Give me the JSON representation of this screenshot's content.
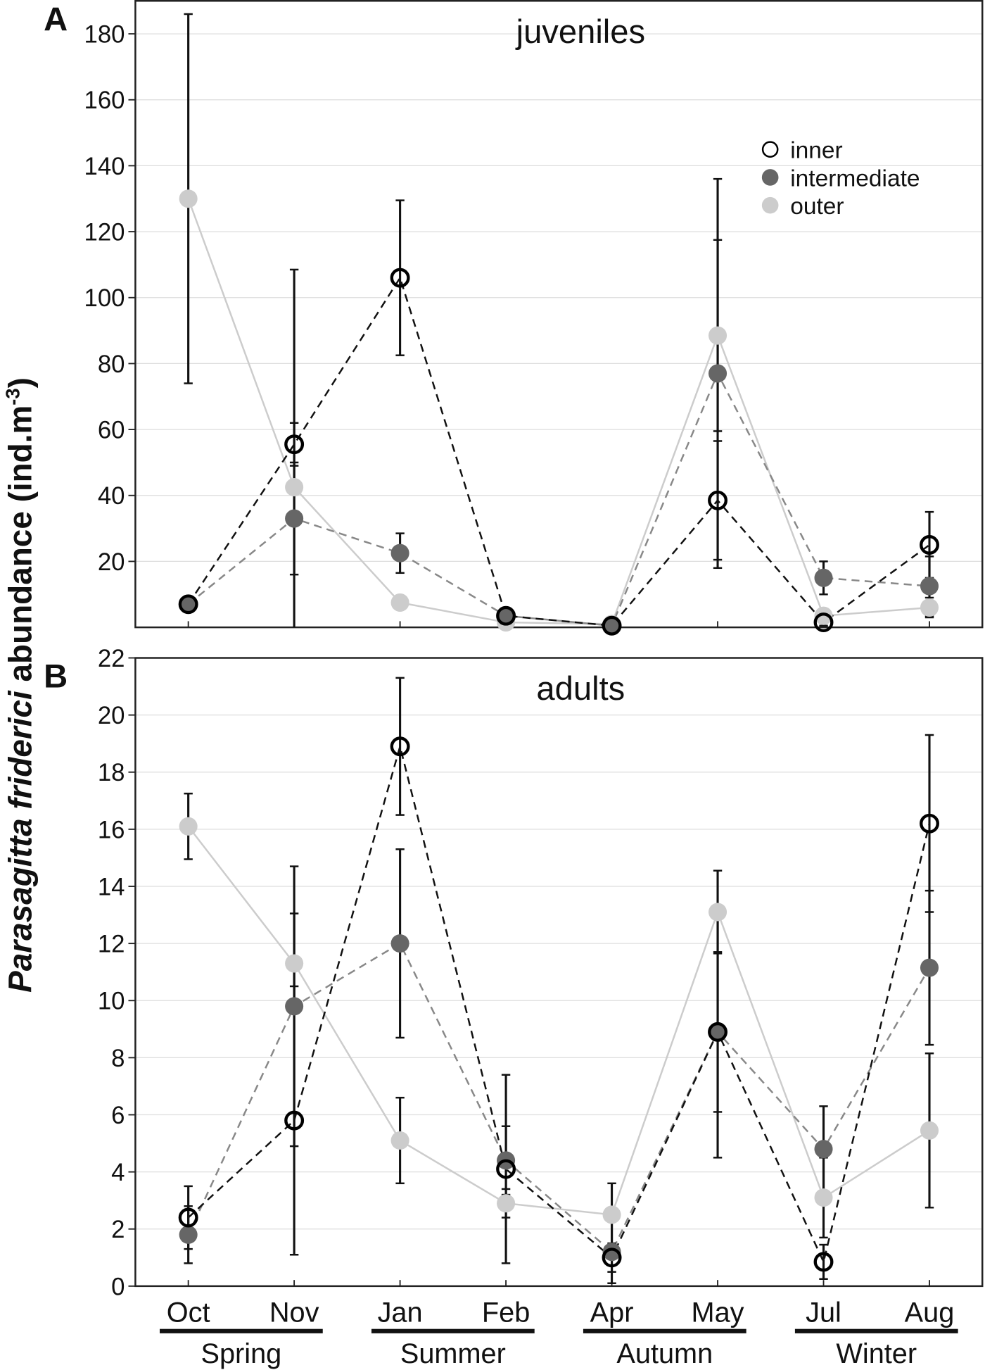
{
  "chart_data": [
    {
      "type": "line",
      "panel_label": "A",
      "title": "juveniles",
      "ylabel": {
        "species": "Parasagitta friderici",
        "text": " abundance (ind.m",
        "sup": "-3",
        "close": ")"
      },
      "categories": [
        "Oct",
        "Nov",
        "Jan",
        "Feb",
        "Apr",
        "May",
        "Jul",
        "Aug"
      ],
      "ylim": [
        0,
        190
      ],
      "yticks": [
        20,
        40,
        60,
        80,
        100,
        120,
        140,
        160,
        180
      ],
      "grid": true,
      "legend": "upper right",
      "series": [
        {
          "name": "inner",
          "color": "#000000",
          "marker": "open",
          "dashed": true,
          "values": [
            7,
            55.5,
            106,
            3.5,
            0.5,
            38.5,
            1.5,
            25
          ],
          "errors": [
            2,
            6.5,
            23.5,
            2,
            0.5,
            18,
            1,
            10
          ]
        },
        {
          "name": "intermediate",
          "color": "#666666",
          "marker": "filled",
          "dashed": true,
          "values": [
            7,
            33,
            22.5,
            3.5,
            0.5,
            77,
            15,
            12.5
          ],
          "errors": [
            1,
            17,
            6,
            1,
            0.5,
            59,
            5,
            9
          ]
        },
        {
          "name": "outer",
          "color": "#cccccc",
          "marker": "filled",
          "dashed": false,
          "values": [
            130,
            42.5,
            7.5,
            1.5,
            1,
            88.5,
            3.5,
            6
          ],
          "errors": [
            56,
            66,
            1,
            1,
            0.5,
            29,
            1,
            3
          ]
        }
      ]
    },
    {
      "type": "line",
      "panel_label": "B",
      "title": "adults",
      "categories": [
        "Oct",
        "Nov",
        "Jan",
        "Feb",
        "Apr",
        "May",
        "Jul",
        "Aug"
      ],
      "groups": [
        "Spring",
        "Summer",
        "Autumn",
        "Winter"
      ],
      "ylim": [
        0,
        22
      ],
      "yticks": [
        0,
        2,
        4,
        6,
        8,
        10,
        12,
        14,
        16,
        18,
        20,
        22
      ],
      "grid": true,
      "series": [
        {
          "name": "inner",
          "color": "#000000",
          "marker": "open",
          "dashed": true,
          "values": [
            2.4,
            5.8,
            18.9,
            4.1,
            1.0,
            8.9,
            0.85,
            16.2
          ],
          "errors": [
            1.1,
            4.7,
            2.4,
            3.3,
            0.5,
            2.8,
            0.6,
            3.1
          ]
        },
        {
          "name": "intermediate",
          "color": "#666666",
          "marker": "filled",
          "dashed": true,
          "values": [
            1.8,
            9.8,
            12,
            4.4,
            1.2,
            8.9,
            4.8,
            11.15
          ],
          "errors": [
            1,
            4.9,
            3.3,
            1.2,
            1.1,
            4.4,
            1.5,
            2.7
          ]
        },
        {
          "name": "outer",
          "color": "#cccccc",
          "marker": "filled",
          "dashed": false,
          "values": [
            16.1,
            11.3,
            5.1,
            2.9,
            2.5,
            13.1,
            3.1,
            5.45
          ],
          "errors": [
            1.15,
            1.75,
            1.5,
            0.5,
            1.1,
            1.45,
            1.4,
            2.7
          ]
        }
      ]
    }
  ]
}
